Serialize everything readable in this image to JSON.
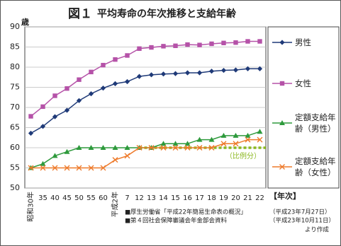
{
  "chart_data": {
    "type": "line",
    "title_prefix": "図１",
    "title": "平均寿命の年次推移と支給年齢",
    "y_label": "歳",
    "x_label": "【年次】",
    "categories": [
      "昭和30年",
      "35",
      "40",
      "45",
      "50",
      "55",
      "60",
      "平成2年",
      "7",
      "12",
      "13",
      "14",
      "15",
      "16",
      "17",
      "18",
      "19",
      "20",
      "21",
      "22"
    ],
    "ylim": [
      50,
      90
    ],
    "yticks": [
      50,
      55,
      60,
      65,
      70,
      75,
      80,
      85,
      90
    ],
    "series": [
      {
        "name": "男性",
        "color": "#1f3a78",
        "marker": "diamond",
        "values": [
          63.6,
          65.3,
          67.7,
          69.3,
          71.7,
          73.4,
          74.8,
          75.9,
          76.4,
          77.7,
          78.1,
          78.3,
          78.4,
          78.6,
          78.6,
          79.0,
          79.2,
          79.3,
          79.6,
          79.6
        ]
      },
      {
        "name": "女性",
        "color": "#b552a8",
        "marker": "square",
        "values": [
          67.8,
          70.2,
          72.9,
          74.7,
          76.9,
          78.8,
          80.5,
          81.9,
          82.9,
          84.6,
          84.9,
          85.2,
          85.3,
          85.6,
          85.5,
          85.8,
          86.0,
          86.1,
          86.4,
          86.4
        ]
      },
      {
        "name": "定額支給年齢（男性）",
        "color": "#2e9a3c",
        "marker": "triangle",
        "values": [
          55,
          56,
          58,
          59,
          60,
          60,
          60,
          60,
          60,
          60,
          60,
          61,
          61,
          61,
          62,
          62,
          63,
          63,
          63,
          64
        ]
      },
      {
        "name": "定額支給年齢（女性）",
        "color": "#ee7a2a",
        "marker": "cross",
        "values": [
          55,
          55,
          55,
          55,
          55,
          55,
          55,
          57,
          58,
          60,
          60,
          60,
          60,
          60,
          60,
          60,
          61,
          61,
          62,
          62
        ]
      }
    ],
    "reference": {
      "label": "（比例分）",
      "y": 60,
      "x_start": "12",
      "color": "#8cb820"
    },
    "sources": [
      {
        "text": "■厚生労働省「平成22年簡易生命表の概況」",
        "date": "（平成23年7月27日）"
      },
      {
        "text": "■第４回社会保障審議会年金部会資料",
        "date": "（平成23年10月11日）"
      }
    ],
    "source_suffix": "より作成"
  }
}
